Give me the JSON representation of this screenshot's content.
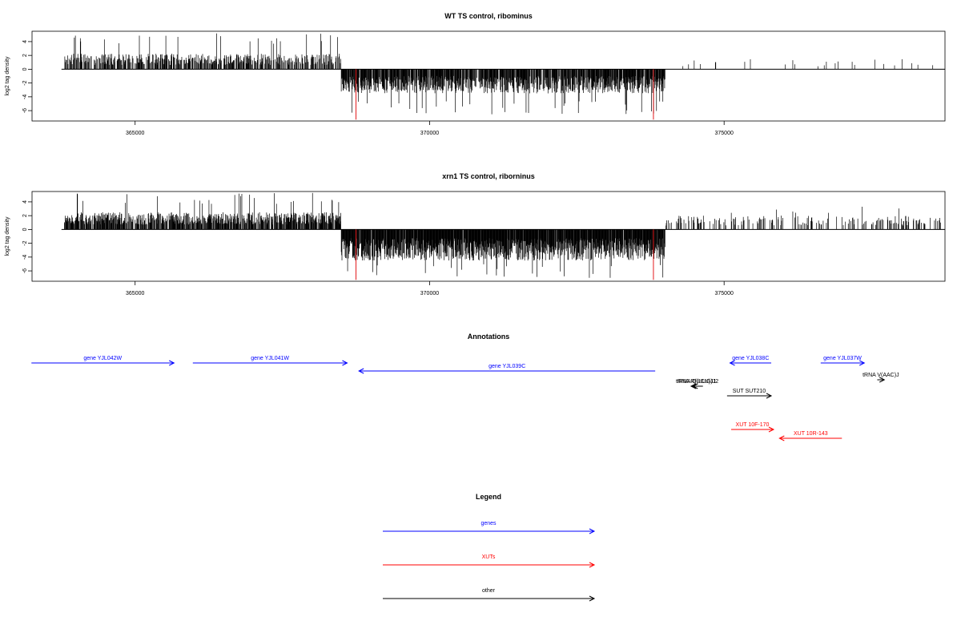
{
  "colors": {
    "axis": "#000000",
    "bars": "#000000",
    "highlight": "#e31a1c",
    "genes": "#0000ff",
    "xuts": "#ff0000",
    "other": "#000000"
  },
  "chart_data": [
    {
      "type": "bar",
      "title": "WT TS control, ribominus",
      "ylabel": "log2 tag density",
      "xlim": [
        363250,
        378750
      ],
      "ylim": [
        -7.5,
        5.5
      ],
      "x_ticks": [
        365000,
        370000,
        375000
      ],
      "x_tick_labels": [
        "365000",
        "370000",
        "375000"
      ],
      "y_ticks": [
        4,
        2,
        0,
        -2,
        -4,
        -6
      ],
      "y_tick_labels": [
        "4",
        "2",
        "0",
        "-2",
        "-4",
        "-6"
      ],
      "baseline": {
        "from": 363750,
        "to": 378750,
        "y": 0
      },
      "highlighted_positions": [
        {
          "x": 368750,
          "value": -7.3
        },
        {
          "x": 373800,
          "value": -7.3
        }
      ],
      "series_profile": [
        {
          "from": 363800,
          "to": 368500,
          "sign": 1,
          "typical": 1.8,
          "peak": 5.2,
          "density": 0.55
        },
        {
          "from": 368500,
          "to": 374000,
          "sign": -1,
          "typical": 2.8,
          "peak": 6.6,
          "density": 0.8
        },
        {
          "from": 374000,
          "to": 378700,
          "sign": 1,
          "typical": 1.2,
          "peak": 2.6,
          "density": 0.04
        }
      ]
    },
    {
      "type": "bar",
      "title": "xrn1 TS control, riborninus",
      "ylabel": "log2 tag density",
      "xlim": [
        363250,
        378750
      ],
      "ylim": [
        -7.5,
        5.5
      ],
      "x_ticks": [
        365000,
        370000,
        375000
      ],
      "x_tick_labels": [
        "365000",
        "370000",
        "375000"
      ],
      "y_ticks": [
        4,
        2,
        0,
        -2,
        -4,
        -6
      ],
      "y_tick_labels": [
        "4",
        "2",
        "0",
        "-2",
        "-4",
        "-6"
      ],
      "baseline": {
        "from": 363750,
        "to": 378750,
        "y": 0
      },
      "highlighted_positions": [
        {
          "x": 368750,
          "value": -7.3
        },
        {
          "x": 373800,
          "value": -7.3
        }
      ],
      "series_profile": [
        {
          "from": 363800,
          "to": 368500,
          "sign": 1,
          "typical": 2.0,
          "peak": 5.3,
          "density": 0.75
        },
        {
          "from": 368500,
          "to": 374000,
          "sign": -1,
          "typical": 3.6,
          "peak": 7.1,
          "density": 0.95
        },
        {
          "from": 374000,
          "to": 378700,
          "sign": 1,
          "typical": 1.6,
          "peak": 3.4,
          "density": 0.22
        }
      ]
    }
  ],
  "annotations": {
    "title": "Annotations",
    "features": [
      {
        "label": "gene YJL042W",
        "kind": "genes",
        "strand": "+",
        "start": 363240,
        "end": 365660,
        "track": 0
      },
      {
        "label": "gene YJL041W",
        "kind": "genes",
        "strand": "+",
        "start": 365980,
        "end": 368600,
        "track": 0
      },
      {
        "label": "gene YJL039C",
        "kind": "genes",
        "strand": "-",
        "start": 368800,
        "end": 373830,
        "track": 1
      },
      {
        "label": "gene YJL038C",
        "kind": "genes",
        "strand": "-",
        "start": 375100,
        "end": 375800,
        "track": 0
      },
      {
        "label": "gene YJL037W",
        "kind": "genes",
        "strand": "+",
        "start": 376640,
        "end": 377380,
        "track": 0
      },
      {
        "label": "tRNA R(UCU)J1",
        "kind": "other",
        "strand": "-",
        "start": 374440,
        "end": 374610,
        "track": 3
      },
      {
        "label": "tRNA Q(UUG)J2",
        "kind": "other",
        "strand": "-",
        "start": 374470,
        "end": 374640,
        "track": 3
      },
      {
        "label": "tRNA V(AAC)J",
        "kind": "other",
        "strand": "+",
        "start": 377600,
        "end": 377720,
        "track": 2
      },
      {
        "label": "SUT SUT210",
        "kind": "other",
        "strand": "+",
        "start": 375050,
        "end": 375800,
        "track": 4
      },
      {
        "label": "XUT 10F-170",
        "kind": "xuts",
        "strand": "+",
        "start": 375120,
        "end": 375840,
        "track": 6
      },
      {
        "label": "XUT 10R-143",
        "kind": "xuts",
        "strand": "-",
        "start": 375940,
        "end": 377000,
        "track": 7
      }
    ]
  },
  "legend": {
    "title": "Legend",
    "items": [
      {
        "label": "genes",
        "kind": "genes"
      },
      {
        "label": "XUTs",
        "kind": "xuts"
      },
      {
        "label": "other",
        "kind": "other"
      }
    ]
  }
}
